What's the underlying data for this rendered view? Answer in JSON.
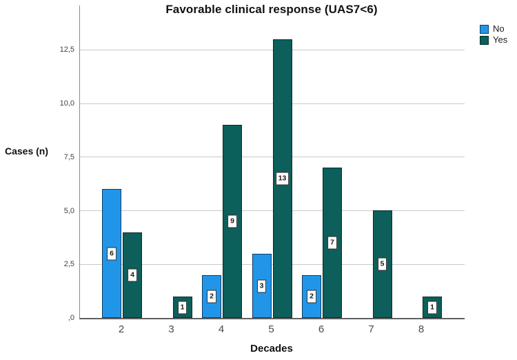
{
  "chart_data": {
    "type": "bar",
    "title": "Favorable clinical response (UAS7<6)",
    "xlabel": "Decades",
    "ylabel": "Cases (n)",
    "categories": [
      "2",
      "3",
      "4",
      "5",
      "6",
      "7",
      "8"
    ],
    "series": [
      {
        "name": "No",
        "color": "#2196e8",
        "border_color": "#123a5e",
        "values": [
          6,
          null,
          2,
          3,
          2,
          null,
          null
        ]
      },
      {
        "name": "Yes",
        "color": "#0d5f5b",
        "border_color": "#042e2b",
        "values": [
          4,
          1,
          9,
          13,
          7,
          5,
          1
        ]
      }
    ],
    "ylim": [
      0,
      14.5
    ],
    "yticks": [
      0,
      2.5,
      5,
      7.5,
      10,
      12.5
    ],
    "ytick_labels": [
      ",0",
      "2,5",
      "5,0",
      "7,5",
      "10,0",
      "12,5"
    ],
    "grid": "horizontal",
    "legend_position": "top-right",
    "bar_value_labels": true,
    "colors": {
      "gridline": "#c9c9c9",
      "axis": "#6a6a6a",
      "background": "#ffffff"
    }
  }
}
